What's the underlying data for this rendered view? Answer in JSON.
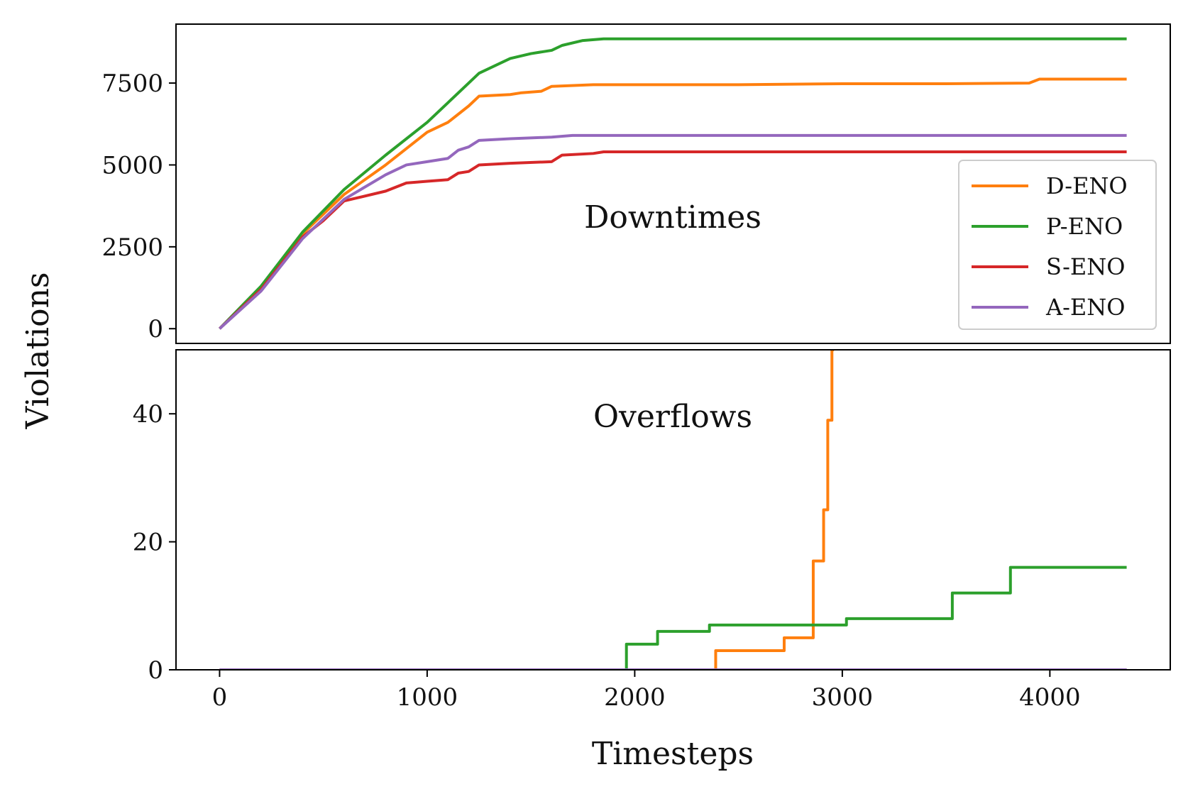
{
  "chart_data": {
    "type": "line",
    "xlabel": "Timesteps",
    "ylabel": "Violations",
    "x_ticks": [
      0,
      1000,
      2000,
      3000,
      4000
    ],
    "x_tick_labels": [
      "0",
      "1000",
      "2000",
      "3000",
      "4000"
    ],
    "xlim": [
      -210,
      4580
    ],
    "legend": {
      "placement": "right",
      "entries": [
        "D-ENO",
        "P-ENO",
        "S-ENO",
        "A-ENO"
      ]
    },
    "panels": [
      {
        "title": "Downtimes",
        "ylim": [
          -450,
          9300
        ],
        "y_ticks": [
          0,
          2500,
          5000,
          7500
        ],
        "y_tick_labels": [
          "0",
          "2500",
          "5000",
          "7500"
        ],
        "step": false,
        "series": [
          {
            "name": "D-ENO",
            "color": "#ff7f0e",
            "points": [
              [
                0,
                0
              ],
              [
                200,
                1200
              ],
              [
                400,
                2900
              ],
              [
                600,
                4100
              ],
              [
                800,
                5000
              ],
              [
                1000,
                6000
              ],
              [
                1100,
                6300
              ],
              [
                1200,
                6800
              ],
              [
                1250,
                7100
              ],
              [
                1400,
                7150
              ],
              [
                1450,
                7200
              ],
              [
                1550,
                7250
              ],
              [
                1600,
                7400
              ],
              [
                1800,
                7450
              ],
              [
                2500,
                7450
              ],
              [
                3000,
                7480
              ],
              [
                3500,
                7480
              ],
              [
                3900,
                7500
              ],
              [
                3950,
                7620
              ],
              [
                4370,
                7620
              ]
            ]
          },
          {
            "name": "P-ENO",
            "color": "#2ca02c",
            "points": [
              [
                0,
                0
              ],
              [
                200,
                1300
              ],
              [
                400,
                2950
              ],
              [
                600,
                4250
              ],
              [
                800,
                5300
              ],
              [
                1000,
                6300
              ],
              [
                1100,
                6900
              ],
              [
                1200,
                7500
              ],
              [
                1250,
                7800
              ],
              [
                1400,
                8250
              ],
              [
                1500,
                8400
              ],
              [
                1600,
                8500
              ],
              [
                1650,
                8650
              ],
              [
                1750,
                8800
              ],
              [
                1850,
                8850
              ],
              [
                4370,
                8850
              ]
            ]
          },
          {
            "name": "S-ENO",
            "color": "#d62728",
            "points": [
              [
                0,
                0
              ],
              [
                200,
                1200
              ],
              [
                400,
                2800
              ],
              [
                500,
                3300
              ],
              [
                600,
                3900
              ],
              [
                800,
                4200
              ],
              [
                900,
                4450
              ],
              [
                1000,
                4500
              ],
              [
                1100,
                4550
              ],
              [
                1150,
                4750
              ],
              [
                1200,
                4800
              ],
              [
                1250,
                5000
              ],
              [
                1400,
                5050
              ],
              [
                1600,
                5100
              ],
              [
                1650,
                5300
              ],
              [
                1800,
                5350
              ],
              [
                1850,
                5400
              ],
              [
                4370,
                5400
              ]
            ]
          },
          {
            "name": "A-ENO",
            "color": "#9467bd",
            "points": [
              [
                0,
                0
              ],
              [
                200,
                1150
              ],
              [
                400,
                2750
              ],
              [
                600,
                3950
              ],
              [
                800,
                4700
              ],
              [
                900,
                5000
              ],
              [
                1000,
                5100
              ],
              [
                1100,
                5200
              ],
              [
                1150,
                5450
              ],
              [
                1200,
                5550
              ],
              [
                1250,
                5750
              ],
              [
                1400,
                5800
              ],
              [
                1600,
                5850
              ],
              [
                1700,
                5900
              ],
              [
                4370,
                5900
              ]
            ]
          }
        ]
      },
      {
        "title": "Overflows",
        "ylim": [
          0,
          50
        ],
        "y_ticks": [
          0,
          20,
          40
        ],
        "y_tick_labels": [
          "0",
          "20",
          "40"
        ],
        "step": true,
        "series": [
          {
            "name": "D-ENO",
            "color": "#ff7f0e",
            "points": [
              [
                0,
                0
              ],
              [
                2390,
                0
              ],
              [
                2390,
                3
              ],
              [
                2720,
                3
              ],
              [
                2720,
                5
              ],
              [
                2860,
                5
              ],
              [
                2860,
                17
              ],
              [
                2910,
                17
              ],
              [
                2910,
                25
              ],
              [
                2930,
                25
              ],
              [
                2930,
                39
              ],
              [
                2950,
                39
              ],
              [
                2950,
                50
              ],
              [
                2960,
                50
              ]
            ]
          },
          {
            "name": "P-ENO",
            "color": "#2ca02c",
            "points": [
              [
                0,
                0
              ],
              [
                1960,
                0
              ],
              [
                1960,
                4
              ],
              [
                2110,
                4
              ],
              [
                2110,
                6
              ],
              [
                2360,
                6
              ],
              [
                2360,
                7
              ],
              [
                3020,
                7
              ],
              [
                3020,
                8
              ],
              [
                3530,
                8
              ],
              [
                3530,
                12
              ],
              [
                3810,
                12
              ],
              [
                3810,
                16
              ],
              [
                4370,
                16
              ]
            ]
          },
          {
            "name": "S-ENO",
            "color": "#d62728",
            "points": [
              [
                0,
                0
              ],
              [
                4370,
                0
              ]
            ]
          },
          {
            "name": "A-ENO",
            "color": "#9467bd",
            "points": [
              [
                0,
                0
              ],
              [
                4370,
                0
              ]
            ]
          }
        ]
      }
    ]
  }
}
